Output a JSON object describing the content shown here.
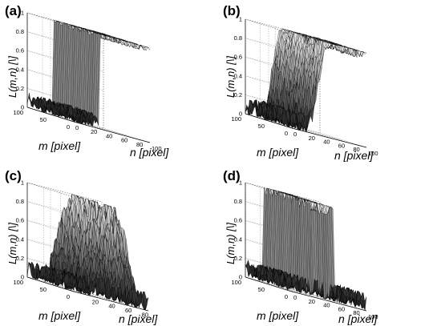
{
  "panels": [
    {
      "label": "(a)",
      "zlabel": "L(m,n) [\\]",
      "xlabel": "m [pixel]",
      "ylabel": "n [pixel]"
    },
    {
      "label": "(b)",
      "zlabel": "L(m,n) [\\]",
      "xlabel": "m [pixel]",
      "ylabel": "n [pixel]"
    },
    {
      "label": "(c)",
      "zlabel": "L(m,n) [\\]",
      "xlabel": "m [pixel]",
      "ylabel": "n [pixel]"
    },
    {
      "label": "(d)",
      "zlabel": "L(m,n) [\\]",
      "xlabel": "m [pixel]",
      "ylabel": "n [pixel]"
    }
  ],
  "chart_data": [
    {
      "type": "surface",
      "title": "(a)",
      "profile": "step",
      "edge_n": [
        35
      ],
      "noise_low": 0.1,
      "noise_high": 0.05,
      "xlabel": "m [pixel]",
      "ylabel": "n [pixel]",
      "zlabel": "L(m,n) [\\]",
      "xlim": [
        0,
        100
      ],
      "ylim": [
        0,
        100
      ],
      "zlim": [
        0,
        1
      ],
      "xticks": [
        0,
        50,
        100
      ],
      "yticks": [
        0,
        20,
        40,
        60,
        80,
        100
      ],
      "zticks": [
        0,
        0.2,
        0.4,
        0.6,
        0.8,
        1
      ],
      "grid": true
    },
    {
      "type": "surface",
      "title": "(b)",
      "profile": "smooth-step",
      "edge_n": [
        20,
        50
      ],
      "noise_low": 0.12,
      "noise_high": 0.08,
      "xlabel": "m [pixel]",
      "ylabel": "n [pixel]",
      "zlabel": "L(m,n) [\\]",
      "xlim": [
        0,
        100
      ],
      "ylim": [
        0,
        100
      ],
      "zlim": [
        0,
        1
      ],
      "xticks": [
        0,
        50,
        100
      ],
      "yticks": [
        0,
        20,
        40,
        60,
        80,
        100
      ],
      "zticks": [
        0,
        0.2,
        0.4,
        0.6,
        0.8,
        1
      ],
      "grid": true
    },
    {
      "type": "surface",
      "title": "(c)",
      "profile": "ridge",
      "edge_n": [
        20,
        50,
        80
      ],
      "noise_low": 0.12,
      "noise_high": 0.15,
      "xlabel": "m [pixel]",
      "ylabel": "n [pixel]",
      "zlabel": "L(m,n) [\\]",
      "xlim": [
        0,
        100
      ],
      "ylim": [
        0,
        90
      ],
      "zlim": [
        0,
        1
      ],
      "xticks": [
        0,
        50,
        100
      ],
      "yticks": [
        20,
        40,
        60,
        80
      ],
      "zticks": [
        0,
        0.2,
        0.4,
        0.6,
        0.8,
        1
      ],
      "grid": true
    },
    {
      "type": "surface",
      "title": "(d)",
      "profile": "plateau",
      "edge_n": [
        25,
        55
      ],
      "noise_low": 0.12,
      "noise_high": 0.1,
      "xlabel": "m [pixel]",
      "ylabel": "n [pixel]",
      "zlabel": "L(m,n) [\\]",
      "xlim": [
        0,
        100
      ],
      "ylim": [
        0,
        100
      ],
      "zlim": [
        0,
        1
      ],
      "xticks": [
        0,
        50,
        100
      ],
      "yticks": [
        0,
        20,
        40,
        60,
        80,
        100
      ],
      "zticks": [
        0,
        0.2,
        0.4,
        0.6,
        0.8,
        1
      ],
      "grid": true
    }
  ]
}
